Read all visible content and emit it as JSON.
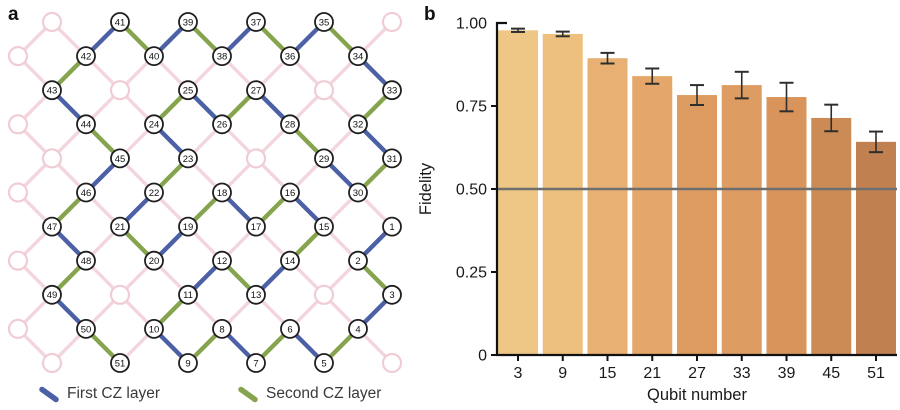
{
  "panel_a": {
    "label": "a",
    "legend": [
      {
        "label": "First CZ layer",
        "color": "#4c60a6"
      },
      {
        "label": "Second CZ layer",
        "color": "#85a44d"
      }
    ],
    "lattice": {
      "background_edge_color": "#f3d6dd",
      "faded_node_border": "#f0ccd5",
      "node_fill": "#ffffff",
      "node_border": "#1f1f1f",
      "number_color": "#111111",
      "first_cz_color": "#4c60a6",
      "second_cz_color": "#85a44d",
      "chain_rule": "qubits n and n+1 are coupled; link is first-CZ (blue) when n is odd, second-CZ (green) when n is even",
      "nodes": [
        {
          "n": 1,
          "col": 11,
          "row": 6
        },
        {
          "n": 2,
          "col": 10,
          "row": 7
        },
        {
          "n": 3,
          "col": 11,
          "row": 8
        },
        {
          "n": 4,
          "col": 10,
          "row": 9
        },
        {
          "n": 5,
          "col": 9,
          "row": 10
        },
        {
          "n": 6,
          "col": 8,
          "row": 9
        },
        {
          "n": 7,
          "col": 7,
          "row": 10
        },
        {
          "n": 8,
          "col": 6,
          "row": 9
        },
        {
          "n": 9,
          "col": 5,
          "row": 10
        },
        {
          "n": 10,
          "col": 4,
          "row": 9
        },
        {
          "n": 11,
          "col": 5,
          "row": 8
        },
        {
          "n": 12,
          "col": 6,
          "row": 7
        },
        {
          "n": 13,
          "col": 7,
          "row": 8
        },
        {
          "n": 14,
          "col": 8,
          "row": 7
        },
        {
          "n": 15,
          "col": 9,
          "row": 6
        },
        {
          "n": 16,
          "col": 8,
          "row": 5
        },
        {
          "n": 17,
          "col": 7,
          "row": 6
        },
        {
          "n": 18,
          "col": 6,
          "row": 5
        },
        {
          "n": 19,
          "col": 5,
          "row": 6
        },
        {
          "n": 20,
          "col": 4,
          "row": 7
        },
        {
          "n": 21,
          "col": 3,
          "row": 6
        },
        {
          "n": 22,
          "col": 4,
          "row": 5
        },
        {
          "n": 23,
          "col": 5,
          "row": 4
        },
        {
          "n": 24,
          "col": 4,
          "row": 3
        },
        {
          "n": 25,
          "col": 5,
          "row": 2
        },
        {
          "n": 26,
          "col": 6,
          "row": 3
        },
        {
          "n": 27,
          "col": 7,
          "row": 2
        },
        {
          "n": 28,
          "col": 8,
          "row": 3
        },
        {
          "n": 29,
          "col": 9,
          "row": 4
        },
        {
          "n": 30,
          "col": 10,
          "row": 5
        },
        {
          "n": 31,
          "col": 11,
          "row": 4
        },
        {
          "n": 32,
          "col": 10,
          "row": 3
        },
        {
          "n": 33,
          "col": 11,
          "row": 2
        },
        {
          "n": 34,
          "col": 10,
          "row": 1
        },
        {
          "n": 35,
          "col": 9,
          "row": 0
        },
        {
          "n": 36,
          "col": 8,
          "row": 1
        },
        {
          "n": 37,
          "col": 7,
          "row": 0
        },
        {
          "n": 38,
          "col": 6,
          "row": 1
        },
        {
          "n": 39,
          "col": 5,
          "row": 0
        },
        {
          "n": 40,
          "col": 4,
          "row": 1
        },
        {
          "n": 41,
          "col": 3,
          "row": 0
        },
        {
          "n": 42,
          "col": 2,
          "row": 1
        },
        {
          "n": 43,
          "col": 1,
          "row": 2
        },
        {
          "n": 44,
          "col": 2,
          "row": 3
        },
        {
          "n": 45,
          "col": 3,
          "row": 4
        },
        {
          "n": 46,
          "col": 2,
          "row": 5
        },
        {
          "n": 47,
          "col": 1,
          "row": 6
        },
        {
          "n": 48,
          "col": 2,
          "row": 7
        },
        {
          "n": 49,
          "col": 1,
          "row": 8
        },
        {
          "n": 50,
          "col": 2,
          "row": 9
        },
        {
          "n": 51,
          "col": 3,
          "row": 10
        }
      ],
      "faded_nodes": [
        [
          1,
          0
        ],
        [
          11,
          0
        ],
        [
          0,
          1
        ],
        [
          3,
          2
        ],
        [
          9,
          2
        ],
        [
          0,
          3
        ],
        [
          1,
          4
        ],
        [
          7,
          4
        ],
        [
          0,
          5
        ],
        [
          0,
          7
        ],
        [
          3,
          8
        ],
        [
          9,
          8
        ],
        [
          0,
          9
        ],
        [
          1,
          10
        ],
        [
          11,
          10
        ]
      ]
    }
  },
  "panel_b": {
    "label": "b",
    "ylabel": "Fidelity",
    "xlabel": "Qubit number",
    "yticks": [
      {
        "label": "1.00",
        "value": 1.0
      },
      {
        "label": "0.75",
        "value": 0.75
      },
      {
        "label": "0.50",
        "value": 0.5
      },
      {
        "label": "0.25",
        "value": 0.25
      },
      {
        "label": "0",
        "value": 0
      }
    ],
    "threshold_value": 0.5,
    "threshold_line_color": "#6f6f6f",
    "axis_color": "#111111",
    "errorbar_color": "#2e2e2e"
  },
  "chart_data": {
    "type": "bar",
    "title": "",
    "xlabel": "Qubit number",
    "ylabel": "Fidelity",
    "categories": [
      3,
      9,
      15,
      21,
      27,
      33,
      39,
      45,
      51
    ],
    "values": [
      0.978,
      0.967,
      0.894,
      0.84,
      0.783,
      0.813,
      0.777,
      0.714,
      0.642
    ],
    "errors": [
      0.005,
      0.007,
      0.016,
      0.023,
      0.03,
      0.04,
      0.043,
      0.04,
      0.031
    ],
    "bar_colors": [
      "#eec685",
      "#edc07d",
      "#e8b173",
      "#e4a769",
      "#de9b60",
      "#dd9d62",
      "#d8945b",
      "#cc8b55",
      "#c08050"
    ],
    "ylim": [
      0,
      1.0
    ],
    "reference_line": 0.5,
    "grid": false,
    "legend_position": "none"
  }
}
